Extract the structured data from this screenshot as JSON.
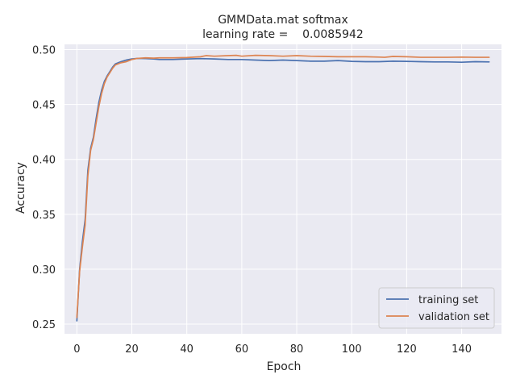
{
  "chart_data": {
    "type": "line",
    "title": "GMMData.mat softmax",
    "subtitle": "learning rate =    0.0085942",
    "xlabel": "Epoch",
    "ylabel": "Accuracy",
    "xlim": [
      -4.5,
      154.5
    ],
    "ylim": [
      0.2412,
      0.5048
    ],
    "xticks": [
      0,
      20,
      40,
      60,
      80,
      100,
      120,
      140
    ],
    "yticks": [
      0.25,
      0.3,
      0.35,
      0.4,
      0.45,
      0.5
    ],
    "ytick_labels": [
      "0.25",
      "0.30",
      "0.35",
      "0.40",
      "0.45",
      "0.50"
    ],
    "grid": true,
    "legend_position": "bottom-right",
    "series": [
      {
        "name": "training set",
        "color": "#4c72b0",
        "x": [
          0,
          1,
          2,
          3,
          4,
          5,
          6,
          7,
          8,
          9,
          10,
          11,
          12,
          13,
          14,
          15,
          16,
          18,
          20,
          22,
          25,
          28,
          30,
          35,
          40,
          45,
          50,
          55,
          60,
          65,
          70,
          75,
          80,
          85,
          90,
          95,
          100,
          105,
          110,
          115,
          120,
          125,
          130,
          135,
          140,
          145,
          150
        ],
        "values": [
          0.253,
          0.3,
          0.325,
          0.345,
          0.39,
          0.41,
          0.42,
          0.437,
          0.452,
          0.463,
          0.471,
          0.476,
          0.48,
          0.484,
          0.487,
          0.488,
          0.489,
          0.4905,
          0.4915,
          0.492,
          0.4918,
          0.4915,
          0.491,
          0.491,
          0.4915,
          0.4918,
          0.4915,
          0.491,
          0.491,
          0.4905,
          0.49,
          0.4905,
          0.49,
          0.4895,
          0.4895,
          0.49,
          0.4893,
          0.489,
          0.489,
          0.4895,
          0.4893,
          0.489,
          0.4888,
          0.4888,
          0.4885,
          0.489,
          0.4888
        ]
      },
      {
        "name": "validation set",
        "color": "#dd8452",
        "x": [
          0,
          1,
          2,
          3,
          4,
          5,
          6,
          7,
          8,
          9,
          10,
          11,
          12,
          13,
          14,
          15,
          16,
          18,
          20,
          22,
          25,
          28,
          30,
          35,
          40,
          45,
          47,
          50,
          55,
          58,
          60,
          65,
          70,
          75,
          80,
          85,
          90,
          95,
          100,
          105,
          110,
          112,
          115,
          120,
          125,
          130,
          135,
          140,
          145,
          150
        ],
        "values": [
          0.256,
          0.298,
          0.32,
          0.34,
          0.385,
          0.408,
          0.418,
          0.433,
          0.448,
          0.46,
          0.469,
          0.475,
          0.479,
          0.483,
          0.486,
          0.487,
          0.488,
          0.489,
          0.491,
          0.492,
          0.4925,
          0.4922,
          0.4925,
          0.4925,
          0.4928,
          0.4935,
          0.4945,
          0.494,
          0.4945,
          0.4948,
          0.494,
          0.4948,
          0.4945,
          0.494,
          0.4945,
          0.494,
          0.4938,
          0.4935,
          0.4935,
          0.4935,
          0.4932,
          0.493,
          0.4938,
          0.4935,
          0.493,
          0.493,
          0.493,
          0.4932,
          0.493,
          0.493
        ]
      }
    ]
  }
}
